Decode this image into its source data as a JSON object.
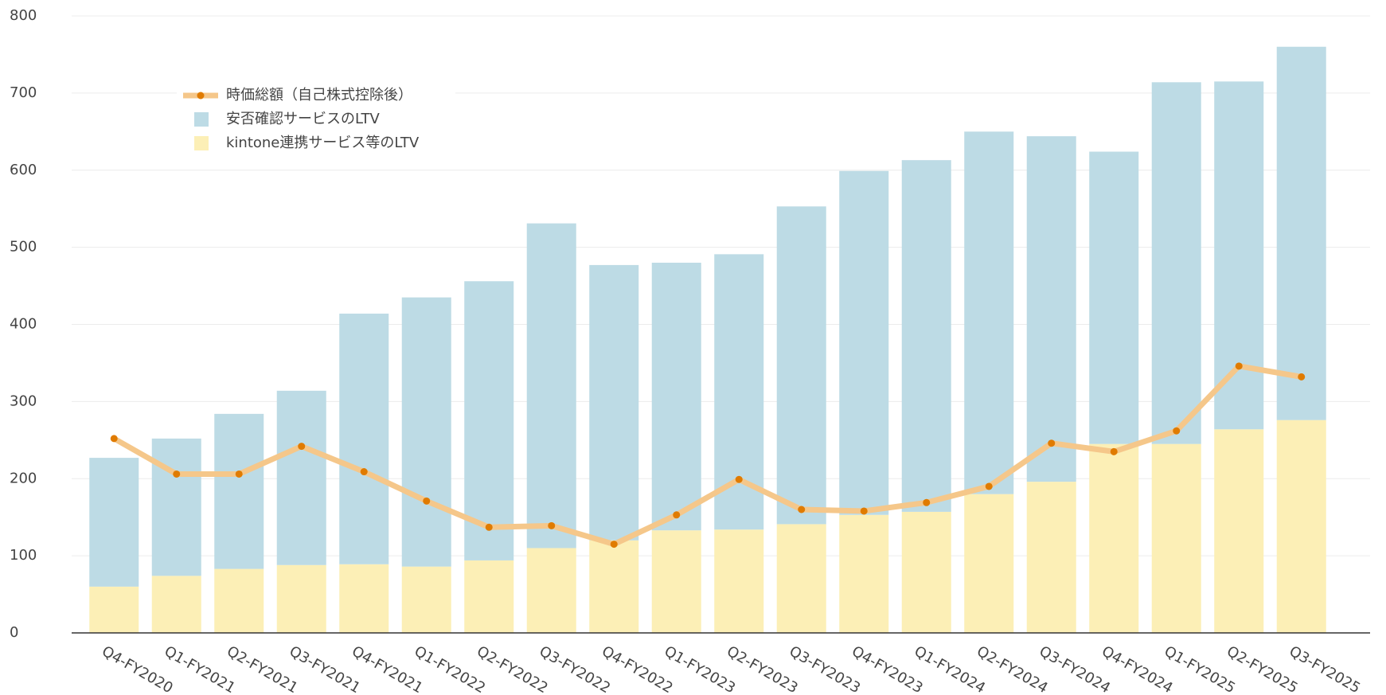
{
  "chart_data": {
    "type": "bar",
    "stacked": true,
    "categories": [
      "Q4-FY2020",
      "Q1-FY2021",
      "Q2-FY2021",
      "Q3-FY2021",
      "Q4-FY2021",
      "Q1-FY2022",
      "Q2-FY2022",
      "Q3-FY2022",
      "Q4-FY2022",
      "Q1-FY2023",
      "Q2-FY2023",
      "Q3-FY2023",
      "Q4-FY2023",
      "Q1-FY2024",
      "Q2-FY2024",
      "Q3-FY2024",
      "Q4-FY2024",
      "Q1-FY2025",
      "Q2-FY2025",
      "Q3-FY2025"
    ],
    "series": [
      {
        "name": "時価総額（自己株式控除後）",
        "type": "line",
        "color": "#f5c78a",
        "marker_color": "#e07b00",
        "values": [
          252,
          206,
          206,
          242,
          209,
          171,
          137,
          139,
          115,
          153,
          199,
          160,
          158,
          169,
          190,
          246,
          235,
          262,
          346,
          332
        ]
      },
      {
        "name": "安否確認サービスのLTV",
        "type": "bar",
        "color": "#bddbe5",
        "values": [
          167,
          178,
          201,
          226,
          325,
          349,
          362,
          421,
          357,
          347,
          357,
          412,
          446,
          456,
          470,
          448,
          379,
          469,
          451,
          484
        ]
      },
      {
        "name": "kintone連携サービス等のLTV",
        "type": "bar",
        "color": "#fcefb6",
        "values": [
          60,
          74,
          83,
          88,
          89,
          86,
          94,
          110,
          120,
          133,
          134,
          141,
          153,
          157,
          180,
          196,
          245,
          245,
          264,
          276
        ]
      }
    ],
    "ylim": [
      0,
      800
    ],
    "yticks": [
      0,
      100,
      200,
      300,
      400,
      500,
      600,
      700,
      800
    ],
    "grid": true,
    "legend": "upper-left"
  }
}
